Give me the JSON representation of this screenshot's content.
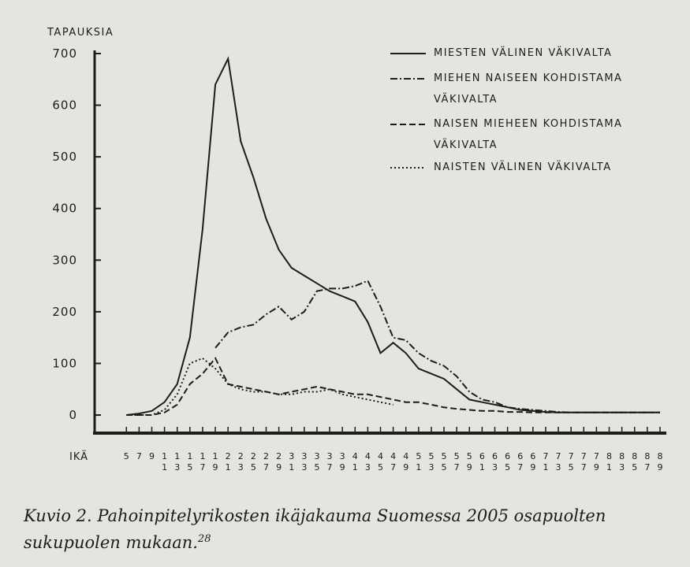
{
  "chart_data": {
    "type": "line",
    "y_label": "TAPAUKSIA",
    "x_label": "IKÄ",
    "caption": "Kuvio 2. Pahoinpitelyrikosten ikäjakauma Suomessa 2005 osapuolten sukupuolen mukaan.",
    "footnote_ref": "28",
    "x": [
      5,
      7,
      9,
      11,
      13,
      15,
      17,
      19,
      21,
      23,
      25,
      27,
      29,
      31,
      33,
      35,
      37,
      39,
      41,
      43,
      45,
      47,
      49,
      51,
      53,
      55,
      57,
      59,
      61,
      63,
      65,
      67,
      69,
      71,
      73,
      75,
      77,
      79,
      81,
      83,
      85,
      87,
      89
    ],
    "xlim": [
      0,
      90
    ],
    "xticks": [
      5,
      7,
      9,
      11,
      13,
      15,
      17,
      19,
      21,
      23,
      25,
      27,
      29,
      31,
      33,
      35,
      37,
      39,
      41,
      43,
      45,
      47,
      49,
      51,
      53,
      55,
      57,
      59,
      61,
      63,
      65,
      67,
      69,
      71,
      73,
      75,
      77,
      79,
      81,
      83,
      85,
      87,
      89
    ],
    "ylim": [
      -35,
      700
    ],
    "yticks": [
      0,
      100,
      200,
      300,
      400,
      500,
      600,
      700
    ],
    "legend": "top-right",
    "series": [
      {
        "name": "MIESTEN VÄLINEN VÄKIVALTA",
        "color": "#1c1c1c",
        "style": "solid",
        "values": [
          0,
          3,
          8,
          25,
          60,
          150,
          360,
          640,
          690,
          530,
          460,
          380,
          320,
          285,
          270,
          255,
          240,
          230,
          220,
          180,
          120,
          140,
          120,
          90,
          80,
          70,
          50,
          30,
          25,
          20,
          15,
          10,
          8,
          6,
          5,
          5,
          5,
          5,
          5,
          5,
          5,
          5,
          5
        ]
      },
      {
        "name": "MIEHEN NAISEEN KOHDISTAMA VÄKIVALTA",
        "color": "#1c1c1c",
        "style": "dashdot",
        "values": [
          null,
          null,
          null,
          null,
          null,
          null,
          null,
          130,
          160,
          170,
          175,
          195,
          210,
          185,
          200,
          240,
          245,
          245,
          250,
          260,
          210,
          150,
          145,
          120,
          105,
          95,
          75,
          45,
          30,
          25,
          15,
          12,
          10,
          8,
          6,
          5,
          5,
          5,
          5,
          5,
          5,
          5,
          5
        ]
      },
      {
        "name": "NAISEN MIEHEEN KOHDISTAMA VÄKIVALTA",
        "color": "#1c1c1c",
        "style": "dashed",
        "values": [
          0,
          0,
          0,
          5,
          20,
          60,
          80,
          110,
          60,
          55,
          50,
          45,
          40,
          45,
          50,
          55,
          50,
          45,
          40,
          40,
          35,
          30,
          25,
          25,
          20,
          15,
          12,
          10,
          8,
          8,
          6,
          6,
          5,
          5,
          5,
          5,
          5,
          5,
          5,
          5,
          5,
          5,
          5
        ]
      },
      {
        "name": "NAISTEN VÄLINEN VÄKIVALTA",
        "color": "#1c1c1c",
        "style": "dotted",
        "values": [
          0,
          0,
          0,
          10,
          40,
          100,
          110,
          90,
          60,
          50,
          45,
          45,
          40,
          40,
          45,
          45,
          50,
          40,
          35,
          30,
          25,
          20,
          null,
          null,
          null,
          null,
          null,
          null,
          null,
          null,
          null,
          null,
          null,
          null,
          null,
          null,
          null,
          null,
          null,
          null,
          null,
          null,
          null
        ]
      }
    ]
  }
}
